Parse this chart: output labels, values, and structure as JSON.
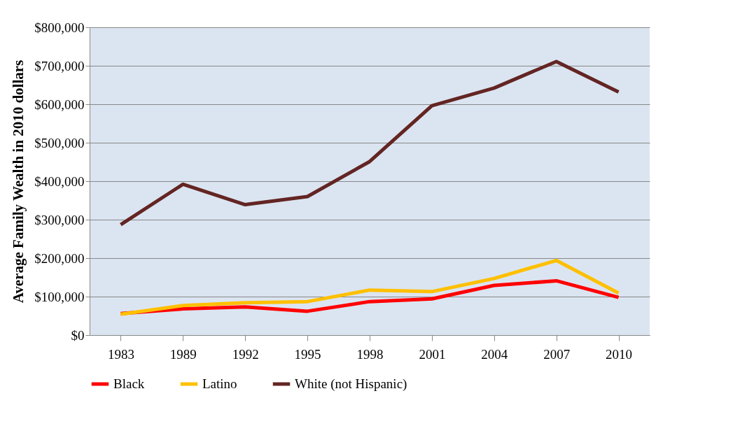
{
  "chart_data": {
    "type": "line",
    "ylabel": "Average Family Wealth in 2010 dollars",
    "categories": [
      "1983",
      "1989",
      "1992",
      "1995",
      "1998",
      "2001",
      "2004",
      "2007",
      "2010"
    ],
    "series": [
      {
        "name": "Black",
        "color": "#ff0000",
        "values": [
          56000,
          68000,
          73000,
          62000,
          87000,
          94000,
          129000,
          141000,
          98000
        ]
      },
      {
        "name": "Latino",
        "color": "#ffc000",
        "values": [
          54000,
          77000,
          84000,
          87000,
          117000,
          113000,
          147000,
          194000,
          109000
        ]
      },
      {
        "name": "White (not Hispanic)",
        "color": "#632523",
        "values": [
          287000,
          392000,
          339000,
          360000,
          451000,
          596000,
          642000,
          711000,
          632000
        ]
      }
    ],
    "ylim": [
      0,
      800000
    ],
    "yticks": [
      {
        "value": 0,
        "label": "$0"
      },
      {
        "value": 100000,
        "label": "$100,000"
      },
      {
        "value": 200000,
        "label": "$200,000"
      },
      {
        "value": 300000,
        "label": "$300,000"
      },
      {
        "value": 400000,
        "label": "$400,000"
      },
      {
        "value": 500000,
        "label": "$500,000"
      },
      {
        "value": 600000,
        "label": "$600,000"
      },
      {
        "value": 700000,
        "label": "$700,000"
      },
      {
        "value": 800000,
        "label": "$800,000"
      }
    ],
    "grid": "y",
    "legend": "bottom",
    "marker": "none",
    "line_style": "solid"
  }
}
